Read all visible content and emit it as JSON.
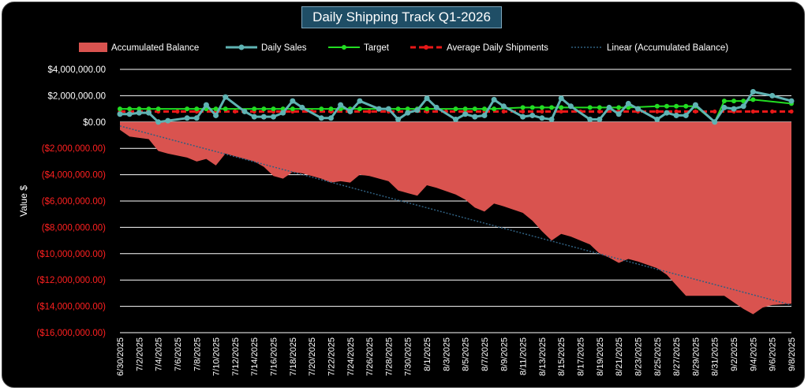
{
  "chart_data": {
    "type": "area",
    "title": "Daily Shipping Track Q1-2026",
    "xlabel": "",
    "ylabel": "Value $",
    "ylim": [
      -16000000,
      4000000
    ],
    "y_ticks": [
      4000000,
      2000000,
      0,
      -2000000,
      -4000000,
      -6000000,
      -8000000,
      -10000000,
      -12000000,
      -14000000,
      -16000000
    ],
    "y_tick_labels": [
      "$4,000,000.00",
      "$2,000,000.00",
      "$0.00",
      "($2,000,000.00)",
      "($4,000,000.00)",
      "($6,000,000.00)",
      "($8,000,000.00)",
      "($10,000,000.00)",
      "($12,000,000.00)",
      "($14,000,000.00)",
      "($16,000,000.00)"
    ],
    "x_tick_labels": [
      "6/30/2025",
      "7/2/2025",
      "7/4/2025",
      "7/6/2025",
      "7/8/2025",
      "7/10/2025",
      "7/12/2025",
      "7/14/2025",
      "7/16/2025",
      "7/18/2025",
      "7/20/2025",
      "7/22/2025",
      "7/24/2025",
      "7/26/2025",
      "7/28/2025",
      "7/30/2025",
      "8/1/2025",
      "8/3/2025",
      "8/5/2025",
      "8/7/2025",
      "8/9/2025",
      "8/11/2025",
      "8/13/2025",
      "8/15/2025",
      "8/17/2025",
      "8/19/2025",
      "8/21/2025",
      "8/23/2025",
      "8/25/2025",
      "8/27/2025",
      "8/29/2025",
      "8/31/2025",
      "9/2/2025",
      "9/4/2025",
      "9/6/2025",
      "9/8/2025"
    ],
    "x_start": "2025-06-30",
    "x_end": "2025-09-08",
    "grid": true,
    "legend": "top",
    "colors": {
      "balance": "#d9534f",
      "sales": "#5fb3b3",
      "target": "#22dd22",
      "average": "#e81818",
      "linear": "#2f5f7f",
      "grid": "#ffffff",
      "negative_tick": "#ff2020"
    },
    "series": [
      {
        "name": "Accumulated Balance",
        "type": "area",
        "points": [
          [
            "2025-06-30",
            -600000
          ],
          [
            "2025-07-01",
            -1100000
          ],
          [
            "2025-07-03",
            -1300000
          ],
          [
            "2025-07-04",
            -2200000
          ],
          [
            "2025-07-05",
            -2400000
          ],
          [
            "2025-07-07",
            -2700000
          ],
          [
            "2025-07-08",
            -3000000
          ],
          [
            "2025-07-09",
            -2800000
          ],
          [
            "2025-07-10",
            -3300000
          ],
          [
            "2025-07-11",
            -2400000
          ],
          [
            "2025-07-12",
            -2600000
          ],
          [
            "2025-07-14",
            -3000000
          ],
          [
            "2025-07-15",
            -3400000
          ],
          [
            "2025-07-16",
            -4100000
          ],
          [
            "2025-07-17",
            -4300000
          ],
          [
            "2025-07-18",
            -3800000
          ],
          [
            "2025-07-19",
            -3900000
          ],
          [
            "2025-07-21",
            -4300000
          ],
          [
            "2025-07-22",
            -4600000
          ],
          [
            "2025-07-23",
            -4500000
          ],
          [
            "2025-07-24",
            -4600000
          ],
          [
            "2025-07-25",
            -4000000
          ],
          [
            "2025-07-26",
            -4100000
          ],
          [
            "2025-07-28",
            -4500000
          ],
          [
            "2025-07-29",
            -5200000
          ],
          [
            "2025-07-30",
            -5400000
          ],
          [
            "2025-07-31",
            -5600000
          ],
          [
            "2025-08-01",
            -4800000
          ],
          [
            "2025-08-02",
            -5000000
          ],
          [
            "2025-08-04",
            -5500000
          ],
          [
            "2025-08-05",
            -5900000
          ],
          [
            "2025-08-06",
            -6500000
          ],
          [
            "2025-08-07",
            -6800000
          ],
          [
            "2025-08-08",
            -6200000
          ],
          [
            "2025-08-09",
            -6400000
          ],
          [
            "2025-08-11",
            -6900000
          ],
          [
            "2025-08-12",
            -7500000
          ],
          [
            "2025-08-13",
            -8300000
          ],
          [
            "2025-08-14",
            -9000000
          ],
          [
            "2025-08-15",
            -8500000
          ],
          [
            "2025-08-16",
            -8700000
          ],
          [
            "2025-08-18",
            -9300000
          ],
          [
            "2025-08-19",
            -10000000
          ],
          [
            "2025-08-20",
            -10300000
          ],
          [
            "2025-08-21",
            -10700000
          ],
          [
            "2025-08-22",
            -10400000
          ],
          [
            "2025-08-23",
            -10600000
          ],
          [
            "2025-08-25",
            -11100000
          ],
          [
            "2025-08-26",
            -11600000
          ],
          [
            "2025-08-27",
            -12400000
          ],
          [
            "2025-08-28",
            -13200000
          ],
          [
            "2025-08-29",
            -13200000
          ],
          [
            "2025-09-01",
            -13200000
          ],
          [
            "2025-09-02",
            -13700000
          ],
          [
            "2025-09-03",
            -14200000
          ],
          [
            "2025-09-04",
            -14600000
          ],
          [
            "2025-09-05",
            -14100000
          ],
          [
            "2025-09-06",
            -13900000
          ],
          [
            "2025-09-08",
            -13800000
          ]
        ]
      },
      {
        "name": "Daily Sales",
        "type": "line-markers",
        "points": [
          [
            "2025-06-30",
            600000
          ],
          [
            "2025-07-01",
            600000
          ],
          [
            "2025-07-02",
            700000
          ],
          [
            "2025-07-03",
            700000
          ],
          [
            "2025-07-04",
            0
          ],
          [
            "2025-07-05",
            100000
          ],
          [
            "2025-07-07",
            300000
          ],
          [
            "2025-07-08",
            300000
          ],
          [
            "2025-07-09",
            1300000
          ],
          [
            "2025-07-10",
            500000
          ],
          [
            "2025-07-11",
            1900000
          ],
          [
            "2025-07-13",
            800000
          ],
          [
            "2025-07-14",
            400000
          ],
          [
            "2025-07-15",
            400000
          ],
          [
            "2025-07-16",
            400000
          ],
          [
            "2025-07-17",
            700000
          ],
          [
            "2025-07-18",
            1600000
          ],
          [
            "2025-07-19",
            1100000
          ],
          [
            "2025-07-21",
            300000
          ],
          [
            "2025-07-22",
            300000
          ],
          [
            "2025-07-23",
            1300000
          ],
          [
            "2025-07-24",
            800000
          ],
          [
            "2025-07-25",
            1600000
          ],
          [
            "2025-07-27",
            1000000
          ],
          [
            "2025-07-28",
            1000000
          ],
          [
            "2025-07-29",
            200000
          ],
          [
            "2025-07-30",
            700000
          ],
          [
            "2025-07-31",
            900000
          ],
          [
            "2025-08-01",
            1800000
          ],
          [
            "2025-08-02",
            1100000
          ],
          [
            "2025-08-04",
            200000
          ],
          [
            "2025-08-05",
            600000
          ],
          [
            "2025-08-06",
            400000
          ],
          [
            "2025-08-07",
            500000
          ],
          [
            "2025-08-08",
            1700000
          ],
          [
            "2025-08-09",
            1200000
          ],
          [
            "2025-08-11",
            400000
          ],
          [
            "2025-08-12",
            500000
          ],
          [
            "2025-08-13",
            300000
          ],
          [
            "2025-08-14",
            200000
          ],
          [
            "2025-08-15",
            1800000
          ],
          [
            "2025-08-16",
            1200000
          ],
          [
            "2025-08-18",
            200000
          ],
          [
            "2025-08-19",
            200000
          ],
          [
            "2025-08-20",
            1100000
          ],
          [
            "2025-08-21",
            600000
          ],
          [
            "2025-08-22",
            1400000
          ],
          [
            "2025-08-23",
            1000000
          ],
          [
            "2025-08-25",
            200000
          ],
          [
            "2025-08-26",
            700000
          ],
          [
            "2025-08-27",
            500000
          ],
          [
            "2025-08-28",
            500000
          ],
          [
            "2025-08-29",
            1300000
          ],
          [
            "2025-08-31",
            0
          ],
          [
            "2025-09-01",
            1100000
          ],
          [
            "2025-09-02",
            1000000
          ],
          [
            "2025-09-03",
            1200000
          ],
          [
            "2025-09-04",
            2300000
          ],
          [
            "2025-09-06",
            2000000
          ],
          [
            "2025-09-08",
            1600000
          ]
        ]
      },
      {
        "name": "Target",
        "type": "line-markers",
        "points": [
          [
            "2025-06-30",
            1000000
          ],
          [
            "2025-07-01",
            1000000
          ],
          [
            "2025-07-02",
            1000000
          ],
          [
            "2025-07-03",
            1000000
          ],
          [
            "2025-07-04",
            1000000
          ],
          [
            "2025-07-07",
            1000000
          ],
          [
            "2025-07-08",
            1000000
          ],
          [
            "2025-07-09",
            1000000
          ],
          [
            "2025-07-10",
            1000000
          ],
          [
            "2025-07-11",
            1000000
          ],
          [
            "2025-07-14",
            1000000
          ],
          [
            "2025-07-15",
            1000000
          ],
          [
            "2025-07-16",
            1000000
          ],
          [
            "2025-07-17",
            1000000
          ],
          [
            "2025-07-18",
            1000000
          ],
          [
            "2025-07-21",
            1000000
          ],
          [
            "2025-07-22",
            1000000
          ],
          [
            "2025-07-23",
            1000000
          ],
          [
            "2025-07-24",
            1000000
          ],
          [
            "2025-07-25",
            1000000
          ],
          [
            "2025-07-28",
            1000000
          ],
          [
            "2025-07-29",
            1000000
          ],
          [
            "2025-07-30",
            1000000
          ],
          [
            "2025-07-31",
            1000000
          ],
          [
            "2025-08-01",
            1000000
          ],
          [
            "2025-08-04",
            1000000
          ],
          [
            "2025-08-05",
            1000000
          ],
          [
            "2025-08-06",
            1000000
          ],
          [
            "2025-08-07",
            1000000
          ],
          [
            "2025-08-08",
            1000000
          ],
          [
            "2025-08-11",
            1100000
          ],
          [
            "2025-08-12",
            1100000
          ],
          [
            "2025-08-13",
            1100000
          ],
          [
            "2025-08-14",
            1100000
          ],
          [
            "2025-08-15",
            1100000
          ],
          [
            "2025-08-18",
            1100000
          ],
          [
            "2025-08-19",
            1100000
          ],
          [
            "2025-08-20",
            1100000
          ],
          [
            "2025-08-21",
            1100000
          ],
          [
            "2025-08-22",
            1100000
          ],
          [
            "2025-08-25",
            1200000
          ],
          [
            "2025-08-26",
            1200000
          ],
          [
            "2025-08-27",
            1200000
          ],
          [
            "2025-08-28",
            1200000
          ],
          [
            "2025-08-29",
            1200000
          ],
          [
            "2025-08-31",
            0
          ],
          [
            "2025-09-01",
            1600000
          ],
          [
            "2025-09-02",
            1600000
          ],
          [
            "2025-09-03",
            1600000
          ],
          [
            "2025-09-04",
            1700000
          ],
          [
            "2025-09-08",
            1400000
          ]
        ]
      },
      {
        "name": "Average Daily Shipments",
        "type": "dashed-line-markers",
        "value": 800000
      },
      {
        "name": "Linear (Accumulated Balance)",
        "type": "dotted-trendline",
        "points": [
          [
            "2025-06-30",
            -300000
          ],
          [
            "2025-09-08",
            -13900000
          ]
        ]
      }
    ]
  }
}
